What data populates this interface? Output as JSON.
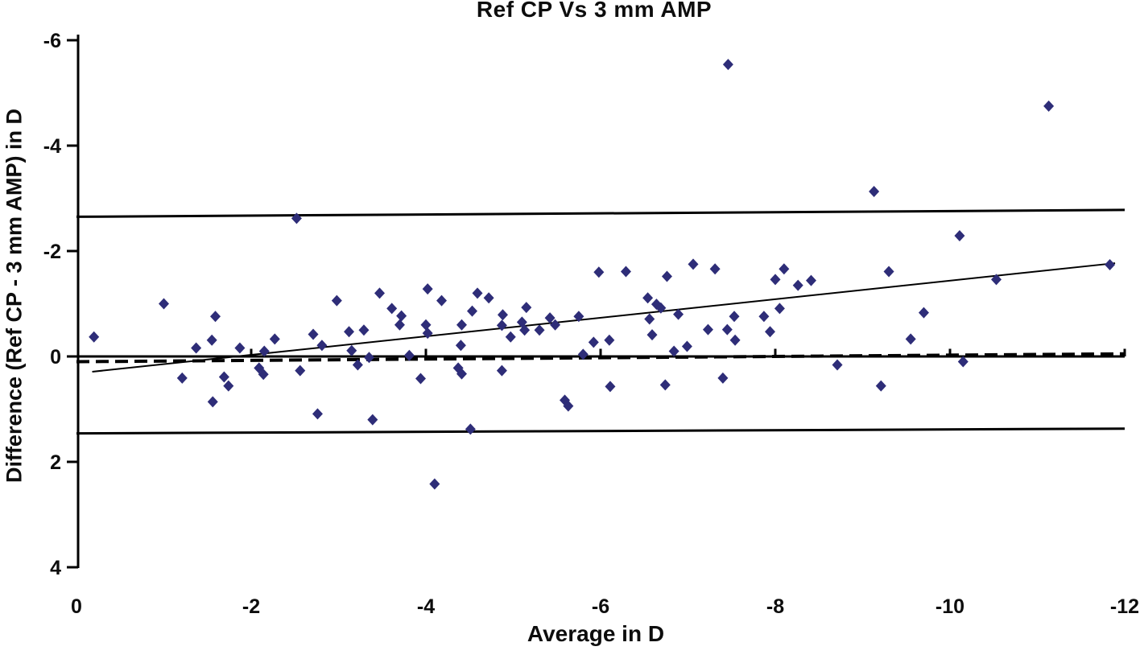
{
  "chart_data": {
    "type": "scatter",
    "title": "Ref CP Vs 3 mm AMP",
    "xlabel": "Average in D",
    "ylabel": "Difference (Ref CP - 3 mm AMP) in D",
    "x_axis": {
      "range": [
        0,
        -12
      ],
      "direction": "0 at left, -12 at right",
      "tick_labels": [
        "0",
        "-2",
        "-4",
        "-6",
        "-8",
        "-10",
        "-12"
      ],
      "tick_values": [
        0,
        -2,
        -4,
        -6,
        -8,
        -10,
        -12
      ],
      "tick_marks_on_zero_line": [
        -2,
        -4,
        -6,
        -8,
        -10,
        -12
      ],
      "grid": false
    },
    "y_axis": {
      "range": [
        -6,
        4
      ],
      "direction": "inverted: -6 at top, 4 at bottom",
      "tick_labels": [
        "-6",
        "-4",
        "-2",
        "0",
        "2",
        "4"
      ],
      "tick_values": [
        -6,
        -4,
        -2,
        0,
        2,
        4
      ],
      "grid": false
    },
    "marker": {
      "shape": "diamond",
      "color": "#2e2d78"
    },
    "line_color": "#000000",
    "legend": "none",
    "lines": [
      {
        "name": "upper-limit-line",
        "style": "solid",
        "width": 3,
        "from": [
          0,
          -2.65
        ],
        "to": [
          -12,
          -2.78
        ]
      },
      {
        "name": "zero-line",
        "style": "solid",
        "width": 3,
        "from": [
          0,
          0.0
        ],
        "to": [
          -12,
          0.0
        ]
      },
      {
        "name": "mean-difference-line",
        "style": "dashed",
        "width": 4,
        "from": [
          0,
          0.1
        ],
        "to": [
          -12,
          -0.05
        ]
      },
      {
        "name": "lower-limit-line",
        "style": "solid",
        "width": 3,
        "from": [
          0,
          1.46
        ],
        "to": [
          -12,
          1.37
        ]
      },
      {
        "name": "trend-line",
        "style": "solid",
        "width": 2,
        "from": [
          -0.18,
          0.29
        ],
        "to": [
          -11.89,
          -1.77
        ]
      }
    ],
    "points": [
      [
        -7.46,
        -5.54
      ],
      [
        -11.13,
        -4.75
      ],
      [
        -9.13,
        -3.13
      ],
      [
        -2.52,
        -2.62
      ],
      [
        -10.11,
        -2.29
      ],
      [
        -1.0,
        -1.0
      ],
      [
        -3.47,
        -1.2
      ],
      [
        -2.98,
        -1.06
      ],
      [
        -3.61,
        -0.91
      ],
      [
        -4.02,
        -1.28
      ],
      [
        -4.18,
        -1.06
      ],
      [
        -4.59,
        -1.2
      ],
      [
        -4.72,
        -1.11
      ],
      [
        -5.98,
        -1.6
      ],
      [
        -6.29,
        -1.61
      ],
      [
        -6.76,
        -1.52
      ],
      [
        -7.06,
        -1.75
      ],
      [
        -7.31,
        -1.66
      ],
      [
        -8.0,
        -1.46
      ],
      [
        -8.1,
        -1.66
      ],
      [
        -8.41,
        -1.44
      ],
      [
        -8.26,
        -1.35
      ],
      [
        -9.3,
        -1.61
      ],
      [
        -10.53,
        -1.46
      ],
      [
        -11.83,
        -1.74
      ],
      [
        -1.59,
        -0.76
      ],
      [
        -2.71,
        -0.42
      ],
      [
        -2.27,
        -0.33
      ],
      [
        -3.12,
        -0.47
      ],
      [
        -3.29,
        -0.5
      ],
      [
        -3.72,
        -0.77
      ],
      [
        -3.7,
        -0.6
      ],
      [
        -4.0,
        -0.6
      ],
      [
        -4.02,
        -0.44
      ],
      [
        -4.41,
        -0.6
      ],
      [
        -4.53,
        -0.86
      ],
      [
        -4.87,
        -0.59
      ],
      [
        -4.88,
        -0.79
      ],
      [
        -4.97,
        -0.37
      ],
      [
        -5.1,
        -0.65
      ],
      [
        -5.13,
        -0.5
      ],
      [
        -5.15,
        -0.93
      ],
      [
        -5.3,
        -0.5
      ],
      [
        -5.42,
        -0.73
      ],
      [
        -5.48,
        -0.6
      ],
      [
        -5.75,
        -0.76
      ],
      [
        -6.54,
        -1.11
      ],
      [
        -6.64,
        -0.99
      ],
      [
        -6.69,
        -0.92
      ],
      [
        -6.56,
        -0.71
      ],
      [
        -6.59,
        -0.41
      ],
      [
        -6.89,
        -0.8
      ],
      [
        -7.23,
        -0.51
      ],
      [
        -7.45,
        -0.51
      ],
      [
        -7.53,
        -0.76
      ],
      [
        -7.87,
        -0.76
      ],
      [
        -7.94,
        -0.47
      ],
      [
        -8.05,
        -0.91
      ],
      [
        -9.7,
        -0.83
      ],
      [
        -0.2,
        -0.37
      ],
      [
        -1.37,
        -0.16
      ],
      [
        -1.55,
        -0.31
      ],
      [
        -1.87,
        -0.16
      ],
      [
        -2.15,
        -0.1
      ],
      [
        -2.81,
        -0.21
      ],
      [
        -3.15,
        -0.11
      ],
      [
        -3.22,
        0.16
      ],
      [
        -3.35,
        0.02
      ],
      [
        -3.81,
        -0.02
      ],
      [
        -4.4,
        -0.21
      ],
      [
        -5.8,
        -0.04
      ],
      [
        -5.92,
        -0.27
      ],
      [
        -6.1,
        -0.31
      ],
      [
        -6.84,
        -0.1
      ],
      [
        -6.99,
        -0.19
      ],
      [
        -7.54,
        -0.31
      ],
      [
        -9.55,
        -0.33
      ],
      [
        -10.15,
        0.1
      ],
      [
        -8.71,
        0.16
      ],
      [
        -1.21,
        0.41
      ],
      [
        -1.69,
        0.39
      ],
      [
        -1.74,
        0.56
      ],
      [
        -2.09,
        0.22
      ],
      [
        -2.14,
        0.34
      ],
      [
        -2.56,
        0.27
      ],
      [
        -1.56,
        0.86
      ],
      [
        -2.76,
        1.09
      ],
      [
        -3.39,
        1.2
      ],
      [
        -3.94,
        0.42
      ],
      [
        -4.37,
        0.22
      ],
      [
        -4.41,
        0.33
      ],
      [
        -4.87,
        0.27
      ],
      [
        -5.59,
        0.83
      ],
      [
        -5.63,
        0.94
      ],
      [
        -6.11,
        0.57
      ],
      [
        -6.74,
        0.54
      ],
      [
        -7.4,
        0.41
      ],
      [
        -4.51,
        1.38
      ],
      [
        -9.21,
        0.56
      ],
      [
        -4.1,
        2.42
      ]
    ]
  }
}
